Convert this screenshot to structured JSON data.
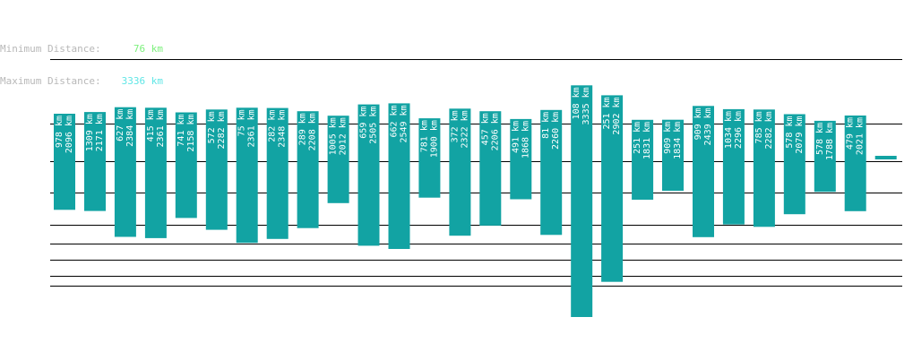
{
  "header": {
    "min_label": "Minimum Distance:",
    "min_value": "76 km",
    "max_label": "Maximum Distance:",
    "max_value": "3336 km"
  },
  "colors": {
    "bar": "#12a3a3",
    "bar_text": "#ffffff",
    "grid": "#000000",
    "label": "#b8b8b8",
    "min_value": "#7cf07c",
    "max_value": "#5fe6e6"
  },
  "chart_data": {
    "type": "bar",
    "style": "floating range bars (min–max)",
    "title": "",
    "xlabel": "",
    "ylabel": "",
    "unit": "km",
    "series": [
      {
        "min": 978,
        "max": 2096
      },
      {
        "min": 1309,
        "max": 2171
      },
      {
        "min": 627,
        "max": 2384
      },
      {
        "min": 415,
        "max": 2361
      },
      {
        "min": 741,
        "max": 2158
      },
      {
        "min": 572,
        "max": 2282
      },
      {
        "min": 75,
        "max": 2361
      },
      {
        "min": 282,
        "max": 2348
      },
      {
        "min": 289,
        "max": 2208
      },
      {
        "min": 1005,
        "max": 2012
      },
      {
        "min": 659,
        "max": 2505
      },
      {
        "min": 662,
        "max": 2549
      },
      {
        "min": 781,
        "max": 1900
      },
      {
        "min": 372,
        "max": 2322
      },
      {
        "min": 457,
        "max": 2206
      },
      {
        "min": 491,
        "max": 1868
      },
      {
        "min": 81,
        "max": 2260
      },
      {
        "min": 108,
        "max": 3335
      },
      {
        "min": 251,
        "max": 2902
      },
      {
        "min": 251,
        "max": 1831
      },
      {
        "min": 909,
        "max": 1834
      },
      {
        "min": 909,
        "max": 2439
      },
      {
        "min": 1034,
        "max": 2296
      },
      {
        "min": 785,
        "max": 2282
      },
      {
        "min": 578,
        "max": 2079
      },
      {
        "min": 578,
        "max": 1788
      },
      {
        "min": 479,
        "max": 2021
      }
    ]
  }
}
